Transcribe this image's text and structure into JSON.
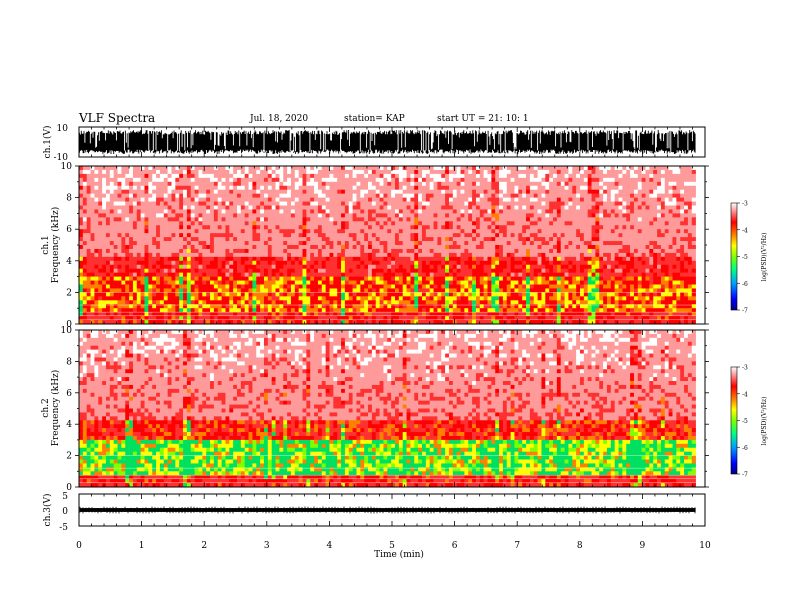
{
  "header": {
    "title": "VLF Spectra",
    "date": "Jul. 18, 2020",
    "station": "station= KAP",
    "start_ut": "start  UT =   21: 10: 1"
  },
  "chart_data": [
    {
      "type": "line",
      "panel": "ch1-waveform",
      "ylabel": "ch.1(V)",
      "ylim": [
        -10,
        10
      ],
      "yticks": [
        "10",
        "-10"
      ],
      "xlim": [
        0,
        10
      ],
      "description_level": "saturated broadband signal filling most of the range",
      "color": "#000000"
    },
    {
      "type": "heatmap",
      "panel": "ch1-spectrogram",
      "ylabel": "ch.1\nFrequency (kHz)",
      "ylabel_lines": [
        "ch.1",
        "Frequency (kHz)"
      ],
      "ylim": [
        0,
        10
      ],
      "yticks": [
        "0",
        "2",
        "4",
        "6",
        "8",
        "10"
      ],
      "xlim": [
        0,
        10
      ],
      "colorbar": {
        "label": "log(PSD)(V²/Hz)",
        "range": [
          -7,
          -3
        ],
        "ticks": [
          "-3",
          "-4",
          "-5",
          "-6",
          "-7"
        ]
      }
    },
    {
      "type": "heatmap",
      "panel": "ch2-spectrogram",
      "ylabel": "ch.2\nFrequency (kHz)",
      "ylabel_lines": [
        "ch.2",
        "Frequency (kHz)"
      ],
      "ylim": [
        0,
        10
      ],
      "yticks": [
        "0",
        "2",
        "4",
        "6",
        "8",
        "10"
      ],
      "xlim": [
        0,
        10
      ],
      "colorbar": {
        "label": "log(PSD)(V²/Hz)",
        "range": [
          -7,
          -3
        ],
        "ticks": [
          "-3",
          "-4",
          "-5",
          "-6",
          "-7"
        ]
      }
    },
    {
      "type": "line",
      "panel": "ch3-waveform",
      "ylabel": "ch.3(V)",
      "ylim": [
        -5,
        5
      ],
      "yticks": [
        "5",
        "0",
        "-5"
      ],
      "xlim": [
        0,
        10
      ],
      "xlabel": "Time (min)",
      "xticks": [
        "0",
        "1",
        "2",
        "3",
        "4",
        "5",
        "6",
        "7",
        "8",
        "9",
        "10"
      ],
      "color": "#000000"
    }
  ],
  "colors": {
    "colormap": [
      "#000080",
      "#0000ff",
      "#00a0ff",
      "#00ff80",
      "#80ff00",
      "#ffff00",
      "#ff8000",
      "#ff0000",
      "#ffffff"
    ]
  }
}
